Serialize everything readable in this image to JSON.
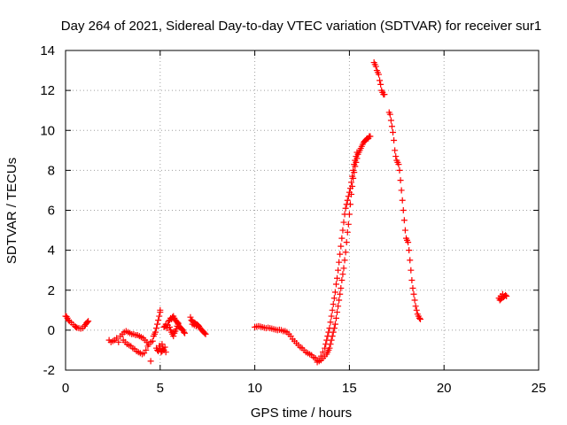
{
  "chart_data": {
    "type": "scatter",
    "title": "Day 264 of 2021, Sidereal Day-to-day VTEC variation (SDTVAR) for receiver sur1",
    "xlabel": "GPS time / hours",
    "ylabel": "SDTVAR / TECUs",
    "xlim": [
      0,
      25
    ],
    "ylim": [
      -2,
      14
    ],
    "xticks": [
      "0",
      "5",
      "10",
      "15",
      "20",
      "25"
    ],
    "yticks": [
      "-2",
      "0",
      "2",
      "4",
      "6",
      "8",
      "10",
      "12",
      "14"
    ],
    "grid": true,
    "marker": "+",
    "color": "#ff0000",
    "series": [
      {
        "name": "sur1",
        "points": [
          [
            0.0,
            0.7
          ],
          [
            0.05,
            0.68
          ],
          [
            0.1,
            0.6
          ],
          [
            0.15,
            0.5
          ],
          [
            0.2,
            0.45
          ],
          [
            0.3,
            0.38
          ],
          [
            0.4,
            0.28
          ],
          [
            0.5,
            0.2
          ],
          [
            0.55,
            0.15
          ],
          [
            0.6,
            0.12
          ],
          [
            0.7,
            0.1
          ],
          [
            0.8,
            0.08
          ],
          [
            0.9,
            0.1
          ],
          [
            1.0,
            0.2
          ],
          [
            1.05,
            0.28
          ],
          [
            1.1,
            0.35
          ],
          [
            1.15,
            0.4
          ],
          [
            1.2,
            0.45
          ],
          [
            2.3,
            -0.5
          ],
          [
            2.4,
            -0.6
          ],
          [
            2.5,
            -0.55
          ],
          [
            2.6,
            -0.5
          ],
          [
            2.7,
            -0.4
          ],
          [
            2.8,
            -0.6
          ],
          [
            2.9,
            -0.3
          ],
          [
            3.0,
            -0.2
          ],
          [
            3.05,
            -0.5
          ],
          [
            3.1,
            -0.1
          ],
          [
            3.15,
            -0.6
          ],
          [
            3.2,
            -0.05
          ],
          [
            3.25,
            -0.7
          ],
          [
            3.3,
            -0.1
          ],
          [
            3.35,
            -0.75
          ],
          [
            3.4,
            -0.15
          ],
          [
            3.45,
            -0.8
          ],
          [
            3.5,
            -0.2
          ],
          [
            3.55,
            -0.9
          ],
          [
            3.6,
            -0.2
          ],
          [
            3.65,
            -0.95
          ],
          [
            3.7,
            -0.25
          ],
          [
            3.75,
            -1.05
          ],
          [
            3.8,
            -0.25
          ],
          [
            3.85,
            -1.1
          ],
          [
            3.9,
            -0.3
          ],
          [
            3.95,
            -1.15
          ],
          [
            4.0,
            -0.35
          ],
          [
            4.05,
            -1.2
          ],
          [
            4.1,
            -0.4
          ],
          [
            4.15,
            -1.15
          ],
          [
            4.2,
            -0.5
          ],
          [
            4.25,
            -1.0
          ],
          [
            4.3,
            -0.6
          ],
          [
            4.35,
            -0.8
          ],
          [
            4.4,
            -0.7
          ],
          [
            4.5,
            -0.6
          ],
          [
            4.6,
            -0.55
          ],
          [
            4.65,
            -0.3
          ],
          [
            4.7,
            -0.2
          ],
          [
            4.75,
            -0.1
          ],
          [
            4.8,
            0.1
          ],
          [
            4.85,
            0.3
          ],
          [
            4.9,
            0.5
          ],
          [
            4.95,
            0.7
          ],
          [
            5.0,
            0.9
          ],
          [
            5.0,
            1.0
          ],
          [
            4.5,
            -1.55
          ],
          [
            4.8,
            -0.9
          ],
          [
            4.85,
            -1.0
          ],
          [
            4.9,
            -1.05
          ],
          [
            4.95,
            -0.8
          ],
          [
            5.0,
            -0.95
          ],
          [
            5.05,
            -1.1
          ],
          [
            5.1,
            -1.05
          ],
          [
            5.15,
            -0.9
          ],
          [
            5.2,
            -1.0
          ],
          [
            5.25,
            -0.85
          ],
          [
            5.3,
            -1.1
          ],
          [
            5.0,
            -0.8
          ],
          [
            5.1,
            -0.7
          ],
          [
            5.2,
            0.15
          ],
          [
            5.25,
            0.2
          ],
          [
            5.3,
            0.3
          ],
          [
            5.35,
            0.1
          ],
          [
            5.4,
            0.25
          ],
          [
            5.45,
            0.45
          ],
          [
            5.5,
            0.5
          ],
          [
            5.55,
            0.6
          ],
          [
            5.6,
            0.55
          ],
          [
            5.65,
            0.65
          ],
          [
            5.7,
            0.7
          ],
          [
            5.75,
            0.6
          ],
          [
            5.8,
            0.5
          ],
          [
            5.85,
            0.45
          ],
          [
            5.9,
            0.4
          ],
          [
            5.95,
            0.3
          ],
          [
            6.0,
            0.2
          ],
          [
            6.05,
            0.15
          ],
          [
            6.1,
            0.1
          ],
          [
            6.15,
            0.05
          ],
          [
            6.2,
            0.0
          ],
          [
            6.25,
            -0.1
          ],
          [
            6.3,
            -0.15
          ],
          [
            5.5,
            0.15
          ],
          [
            5.55,
            0.0
          ],
          [
            5.6,
            -0.1
          ],
          [
            5.65,
            -0.2
          ],
          [
            5.7,
            -0.3
          ],
          [
            5.75,
            -0.15
          ],
          [
            5.8,
            -0.05
          ],
          [
            5.85,
            0.05
          ],
          [
            5.9,
            0.2
          ],
          [
            5.95,
            0.35
          ],
          [
            6.6,
            0.65
          ],
          [
            6.65,
            0.5
          ],
          [
            6.7,
            0.45
          ],
          [
            6.75,
            0.4
          ],
          [
            6.8,
            0.38
          ],
          [
            6.85,
            0.35
          ],
          [
            6.9,
            0.3
          ],
          [
            6.95,
            0.28
          ],
          [
            7.0,
            0.25
          ],
          [
            7.05,
            0.2
          ],
          [
            7.1,
            0.12
          ],
          [
            7.15,
            0.05
          ],
          [
            7.2,
            0.0
          ],
          [
            7.25,
            -0.05
          ],
          [
            7.3,
            -0.1
          ],
          [
            7.35,
            -0.15
          ],
          [
            7.4,
            -0.2
          ],
          [
            6.7,
            0.3
          ],
          [
            6.8,
            0.25
          ],
          [
            6.9,
            0.2
          ],
          [
            10.0,
            0.15
          ],
          [
            10.1,
            0.18
          ],
          [
            10.2,
            0.2
          ],
          [
            10.3,
            0.18
          ],
          [
            10.4,
            0.15
          ],
          [
            10.5,
            0.12
          ],
          [
            10.6,
            0.1
          ],
          [
            10.7,
            0.12
          ],
          [
            10.8,
            0.1
          ],
          [
            10.9,
            0.08
          ],
          [
            11.0,
            0.05
          ],
          [
            11.1,
            0.03
          ],
          [
            11.2,
            0.0
          ],
          [
            11.3,
            0.02
          ],
          [
            11.4,
            0.0
          ],
          [
            11.5,
            -0.05
          ],
          [
            11.6,
            -0.05
          ],
          [
            11.7,
            -0.1
          ],
          [
            11.8,
            -0.2
          ],
          [
            11.9,
            -0.3
          ],
          [
            12.0,
            -0.45
          ],
          [
            12.1,
            -0.55
          ],
          [
            12.2,
            -0.65
          ],
          [
            12.3,
            -0.75
          ],
          [
            12.4,
            -0.85
          ],
          [
            12.5,
            -0.9
          ],
          [
            12.6,
            -1.0
          ],
          [
            12.7,
            -1.1
          ],
          [
            12.8,
            -1.15
          ],
          [
            12.9,
            -1.2
          ],
          [
            13.0,
            -1.25
          ],
          [
            13.1,
            -1.35
          ],
          [
            13.2,
            -1.4
          ],
          [
            13.3,
            -1.5
          ],
          [
            13.4,
            -1.55
          ],
          [
            13.5,
            -1.5
          ],
          [
            13.6,
            -1.4
          ],
          [
            13.7,
            -1.3
          ],
          [
            13.8,
            -1.2
          ],
          [
            13.85,
            -1.1
          ],
          [
            13.9,
            -1.0
          ],
          [
            13.95,
            -0.9
          ],
          [
            14.0,
            -0.7
          ],
          [
            14.05,
            -0.5
          ],
          [
            14.1,
            -0.3
          ],
          [
            14.15,
            -0.1
          ],
          [
            14.2,
            0.1
          ],
          [
            14.25,
            0.3
          ],
          [
            14.3,
            0.6
          ],
          [
            14.35,
            0.9
          ],
          [
            14.4,
            1.2
          ],
          [
            14.45,
            1.5
          ],
          [
            14.5,
            1.8
          ],
          [
            14.55,
            2.1
          ],
          [
            14.6,
            2.5
          ],
          [
            14.65,
            2.8
          ],
          [
            14.7,
            3.1
          ],
          [
            14.75,
            3.5
          ],
          [
            14.8,
            3.9
          ],
          [
            14.85,
            4.4
          ],
          [
            14.9,
            4.9
          ],
          [
            14.95,
            5.3
          ],
          [
            15.0,
            5.8
          ],
          [
            15.05,
            6.3
          ],
          [
            15.1,
            6.8
          ],
          [
            15.15,
            7.2
          ],
          [
            15.2,
            7.6
          ],
          [
            15.25,
            7.9
          ],
          [
            15.3,
            8.2
          ],
          [
            15.35,
            8.4
          ],
          [
            15.4,
            8.6
          ],
          [
            15.45,
            8.8
          ],
          [
            15.5,
            8.9
          ],
          [
            15.55,
            9.0
          ],
          [
            15.6,
            9.1
          ],
          [
            15.65,
            9.2
          ],
          [
            15.7,
            9.3
          ],
          [
            15.75,
            9.4
          ],
          [
            15.8,
            9.45
          ],
          [
            15.85,
            9.5
          ],
          [
            15.9,
            9.55
          ],
          [
            15.95,
            9.6
          ],
          [
            16.0,
            9.6
          ],
          [
            16.05,
            9.7
          ],
          [
            16.1,
            9.7
          ],
          [
            13.3,
            -1.6
          ],
          [
            13.4,
            -1.5
          ],
          [
            13.5,
            -1.3
          ],
          [
            13.6,
            -1.1
          ],
          [
            13.7,
            -0.9
          ],
          [
            13.75,
            -0.7
          ],
          [
            13.8,
            -0.5
          ],
          [
            13.85,
            -0.3
          ],
          [
            13.9,
            -0.1
          ],
          [
            13.95,
            0.1
          ],
          [
            14.0,
            0.4
          ],
          [
            14.05,
            0.7
          ],
          [
            14.1,
            1.0
          ],
          [
            14.15,
            1.3
          ],
          [
            14.2,
            1.6
          ],
          [
            14.25,
            1.9
          ],
          [
            14.3,
            2.3
          ],
          [
            14.35,
            2.6
          ],
          [
            14.4,
            3.0
          ],
          [
            14.45,
            3.4
          ],
          [
            14.5,
            3.8
          ],
          [
            14.55,
            4.2
          ],
          [
            14.6,
            4.6
          ],
          [
            14.65,
            5.0
          ],
          [
            14.7,
            5.4
          ],
          [
            14.75,
            5.8
          ],
          [
            14.8,
            6.1
          ],
          [
            14.85,
            6.3
          ],
          [
            14.9,
            6.5
          ],
          [
            14.95,
            6.7
          ],
          [
            15.0,
            6.9
          ],
          [
            15.05,
            7.1
          ],
          [
            15.1,
            7.4
          ],
          [
            15.15,
            7.7
          ],
          [
            15.2,
            8.0
          ],
          [
            15.25,
            8.3
          ],
          [
            15.3,
            8.5
          ],
          [
            15.35,
            8.7
          ],
          [
            15.4,
            8.9
          ],
          [
            16.3,
            13.4
          ],
          [
            16.35,
            13.3
          ],
          [
            16.4,
            13.2
          ],
          [
            16.45,
            13.0
          ],
          [
            16.5,
            12.9
          ],
          [
            16.55,
            12.8
          ],
          [
            16.6,
            12.5
          ],
          [
            16.65,
            12.3
          ],
          [
            16.7,
            12.0
          ],
          [
            16.75,
            11.9
          ],
          [
            16.8,
            11.8
          ],
          [
            16.85,
            11.8
          ],
          [
            17.1,
            10.9
          ],
          [
            17.15,
            10.8
          ],
          [
            17.2,
            10.5
          ],
          [
            17.25,
            10.2
          ],
          [
            17.3,
            9.9
          ],
          [
            17.35,
            9.5
          ],
          [
            17.4,
            9.0
          ],
          [
            17.45,
            8.7
          ],
          [
            17.5,
            8.5
          ],
          [
            17.55,
            8.4
          ],
          [
            17.6,
            8.3
          ],
          [
            17.65,
            8.0
          ],
          [
            17.7,
            7.5
          ],
          [
            17.75,
            7.0
          ],
          [
            17.8,
            6.5
          ],
          [
            17.85,
            6.0
          ],
          [
            17.9,
            5.5
          ],
          [
            17.95,
            5.0
          ],
          [
            18.0,
            4.6
          ],
          [
            18.05,
            4.5
          ],
          [
            18.1,
            4.4
          ],
          [
            18.15,
            4.0
          ],
          [
            18.2,
            3.5
          ],
          [
            18.25,
            3.0
          ],
          [
            18.3,
            2.5
          ],
          [
            18.35,
            2.1
          ],
          [
            18.4,
            1.8
          ],
          [
            18.45,
            1.5
          ],
          [
            18.5,
            1.2
          ],
          [
            18.55,
            1.0
          ],
          [
            18.6,
            0.8
          ],
          [
            18.65,
            0.7
          ],
          [
            18.7,
            0.6
          ],
          [
            18.75,
            0.55
          ],
          [
            22.9,
            1.6
          ],
          [
            22.95,
            1.5
          ],
          [
            23.0,
            1.7
          ],
          [
            23.05,
            1.6
          ],
          [
            23.1,
            1.8
          ],
          [
            23.15,
            1.65
          ],
          [
            23.2,
            1.7
          ],
          [
            23.25,
            1.75
          ],
          [
            23.3,
            1.7
          ],
          [
            23.0,
            1.55
          ]
        ]
      }
    ]
  }
}
